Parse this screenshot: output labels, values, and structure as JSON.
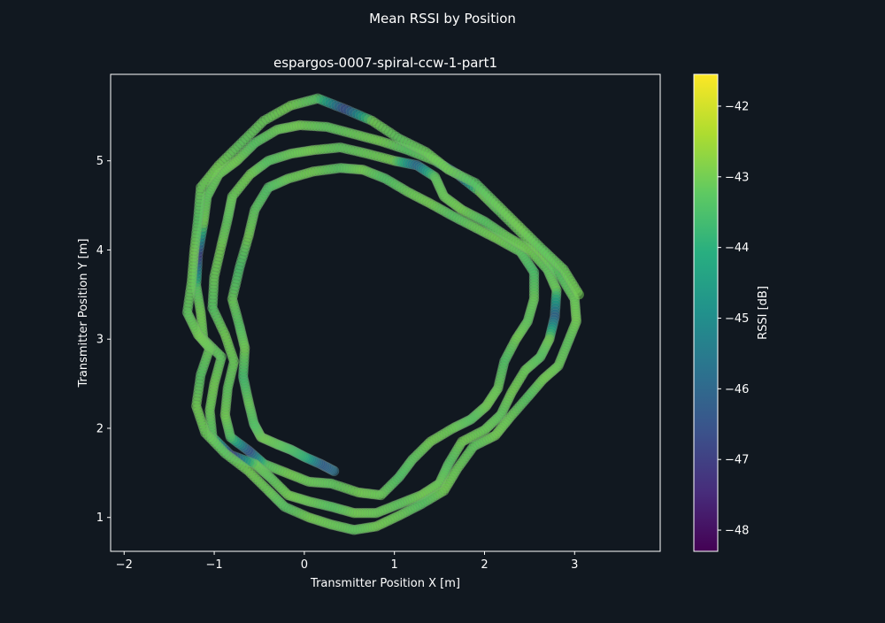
{
  "figure": {
    "suptitle": "Mean RSSI by Position",
    "background": "#111820"
  },
  "chart_data": {
    "type": "scatter",
    "title": "espargos-0007-spiral-ccw-1-part1",
    "xlabel": "Transmitter Position X [m]",
    "ylabel": "Transmitter Position Y [m]",
    "xlim": [
      -2.15,
      3.95
    ],
    "ylim": [
      0.62,
      5.97
    ],
    "xticks": [
      -2,
      -1,
      0,
      1,
      2,
      3
    ],
    "yticks": [
      1,
      2,
      3,
      4,
      5
    ],
    "xtick_labels": [
      "−2",
      "−1",
      "0",
      "1",
      "2",
      "3"
    ],
    "ytick_labels": [
      "1",
      "2",
      "3",
      "4",
      "5"
    ],
    "grid": false,
    "colormap": "viridis",
    "colorbar": {
      "label": "RSSI [dB]",
      "min": -48.3,
      "max": -41.55,
      "ticks": [
        -48,
        -47,
        -46,
        -45,
        -44,
        -43,
        -42
      ],
      "tick_labels": [
        "−48",
        "−47",
        "−46",
        "−45",
        "−44",
        "−43",
        "−42"
      ]
    },
    "series": [
      {
        "description_hidden": false,
        "points": [
          [
            0.33,
            1.52,
            -45.8
          ],
          [
            0.18,
            1.6,
            -46.3
          ],
          [
            0.0,
            1.68,
            -44.0
          ],
          [
            -0.15,
            1.76,
            -43.5
          ],
          [
            -0.3,
            1.82,
            -43.2
          ],
          [
            -0.48,
            1.9,
            -43.0
          ],
          [
            -0.56,
            2.05,
            -43.4
          ],
          [
            -0.62,
            2.3,
            -43.1
          ],
          [
            -0.68,
            2.58,
            -43.6
          ],
          [
            -0.66,
            2.9,
            -43.0
          ],
          [
            -0.72,
            3.15,
            -43.3
          ],
          [
            -0.8,
            3.45,
            -43.1
          ],
          [
            -0.72,
            3.8,
            -43.5
          ],
          [
            -0.62,
            4.15,
            -43.0
          ],
          [
            -0.55,
            4.45,
            -43.2
          ],
          [
            -0.4,
            4.7,
            -43.4
          ],
          [
            -0.18,
            4.8,
            -43.1
          ],
          [
            0.1,
            4.88,
            -43.0
          ],
          [
            0.4,
            4.92,
            -43.3
          ],
          [
            0.65,
            4.9,
            -43.0
          ],
          [
            0.9,
            4.8,
            -43.4
          ],
          [
            1.15,
            4.65,
            -43.1
          ],
          [
            1.4,
            4.52,
            -43.0
          ],
          [
            1.65,
            4.38,
            -43.3
          ],
          [
            1.9,
            4.25,
            -43.1
          ],
          [
            2.15,
            4.12,
            -43.0
          ],
          [
            2.4,
            3.98,
            -43.2
          ],
          [
            2.55,
            3.75,
            -43.5
          ],
          [
            2.55,
            3.45,
            -43.1
          ],
          [
            2.48,
            3.2,
            -43.2
          ],
          [
            2.35,
            3.0,
            -43.0
          ],
          [
            2.22,
            2.75,
            -43.4
          ],
          [
            2.15,
            2.45,
            -43.1
          ],
          [
            2.02,
            2.25,
            -43.0
          ],
          [
            1.85,
            2.1,
            -43.3
          ],
          [
            1.65,
            2.0,
            -43.1
          ],
          [
            1.4,
            1.85,
            -43.0
          ],
          [
            1.2,
            1.65,
            -43.2
          ],
          [
            1.05,
            1.45,
            -43.4
          ],
          [
            0.85,
            1.25,
            -43.1
          ],
          [
            0.6,
            1.28,
            -43.0
          ],
          [
            0.3,
            1.38,
            -43.2
          ],
          [
            0.05,
            1.4,
            -43.1
          ],
          [
            -0.2,
            1.5,
            -43.0
          ],
          [
            -0.45,
            1.6,
            -43.3
          ],
          [
            -0.62,
            1.75,
            -46.6
          ],
          [
            -0.82,
            1.9,
            -43.4
          ],
          [
            -0.88,
            2.15,
            -43.0
          ],
          [
            -0.85,
            2.45,
            -43.2
          ],
          [
            -0.78,
            2.75,
            -43.1
          ],
          [
            -0.88,
            3.05,
            -43.0
          ],
          [
            -1.02,
            3.35,
            -43.3
          ],
          [
            -1.0,
            3.7,
            -43.1
          ],
          [
            -0.92,
            4.05,
            -43.0
          ],
          [
            -0.85,
            4.35,
            -43.2
          ],
          [
            -0.8,
            4.6,
            -43.1
          ],
          [
            -0.6,
            4.85,
            -43.0
          ],
          [
            -0.4,
            5.0,
            -43.3
          ],
          [
            -0.15,
            5.08,
            -43.1
          ],
          [
            0.1,
            5.12,
            -43.0
          ],
          [
            0.4,
            5.15,
            -43.2
          ],
          [
            0.7,
            5.08,
            -43.1
          ],
          [
            1.0,
            5.0,
            -43.0
          ],
          [
            1.25,
            4.95,
            -46.0
          ],
          [
            1.45,
            4.82,
            -43.2
          ],
          [
            1.55,
            4.6,
            -43.1
          ],
          [
            1.75,
            4.45,
            -43.0
          ],
          [
            2.0,
            4.32,
            -43.3
          ],
          [
            2.25,
            4.15,
            -43.1
          ],
          [
            2.5,
            4.0,
            -43.0
          ],
          [
            2.7,
            3.78,
            -43.2
          ],
          [
            2.8,
            3.55,
            -43.1
          ],
          [
            2.78,
            3.25,
            -46.2
          ],
          [
            2.72,
            3.0,
            -43.0
          ],
          [
            2.62,
            2.8,
            -43.3
          ],
          [
            2.45,
            2.65,
            -43.1
          ],
          [
            2.3,
            2.4,
            -43.0
          ],
          [
            2.18,
            2.15,
            -43.2
          ],
          [
            2.0,
            1.98,
            -43.1
          ],
          [
            1.75,
            1.85,
            -43.0
          ],
          [
            1.6,
            1.6,
            -43.3
          ],
          [
            1.5,
            1.38,
            -43.1
          ],
          [
            1.3,
            1.25,
            -43.0
          ],
          [
            1.05,
            1.15,
            -43.2
          ],
          [
            0.8,
            1.05,
            -43.1
          ],
          [
            0.55,
            1.05,
            -43.0
          ],
          [
            0.3,
            1.12,
            -43.3
          ],
          [
            0.05,
            1.18,
            -43.1
          ],
          [
            -0.18,
            1.25,
            -43.0
          ],
          [
            -0.38,
            1.45,
            -43.2
          ],
          [
            -0.55,
            1.6,
            -43.1
          ],
          [
            -0.82,
            1.7,
            -47.0
          ],
          [
            -1.02,
            1.9,
            -43.3
          ],
          [
            -1.05,
            2.2,
            -43.1
          ],
          [
            -1.0,
            2.5,
            -43.0
          ],
          [
            -0.92,
            2.8,
            -43.2
          ],
          [
            -1.12,
            3.0,
            -43.1
          ],
          [
            -1.15,
            3.3,
            -43.0
          ],
          [
            -1.2,
            3.6,
            -43.3
          ],
          [
            -1.18,
            3.95,
            -47.1
          ],
          [
            -1.12,
            4.3,
            -43.0
          ],
          [
            -1.08,
            4.6,
            -43.2
          ],
          [
            -0.95,
            4.85,
            -43.1
          ],
          [
            -0.75,
            5.0,
            -43.0
          ],
          [
            -0.55,
            5.2,
            -43.3
          ],
          [
            -0.3,
            5.35,
            -43.1
          ],
          [
            -0.05,
            5.4,
            -43.0
          ],
          [
            0.25,
            5.38,
            -43.2
          ],
          [
            0.55,
            5.3,
            -43.1
          ],
          [
            0.85,
            5.22,
            -43.0
          ],
          [
            1.15,
            5.12,
            -43.3
          ],
          [
            1.45,
            5.0,
            -43.1
          ],
          [
            1.7,
            4.85,
            -46.4
          ],
          [
            1.95,
            4.65,
            -43.0
          ],
          [
            2.15,
            4.45,
            -43.2
          ],
          [
            2.4,
            4.2,
            -43.1
          ],
          [
            2.65,
            3.95,
            -43.0
          ],
          [
            2.85,
            3.7,
            -43.3
          ],
          [
            3.0,
            3.45,
            -43.1
          ],
          [
            3.02,
            3.2,
            -43.0
          ],
          [
            2.92,
            2.95,
            -43.2
          ],
          [
            2.82,
            2.7,
            -43.1
          ],
          [
            2.65,
            2.55,
            -43.0
          ],
          [
            2.48,
            2.35,
            -43.3
          ],
          [
            2.28,
            2.12,
            -43.1
          ],
          [
            2.12,
            1.92,
            -43.0
          ],
          [
            1.88,
            1.8,
            -43.2
          ],
          [
            1.7,
            1.55,
            -43.1
          ],
          [
            1.55,
            1.3,
            -43.0
          ],
          [
            1.3,
            1.15,
            -43.3
          ],
          [
            1.05,
            1.02,
            -43.1
          ],
          [
            0.8,
            0.9,
            -43.0
          ],
          [
            0.55,
            0.86,
            -43.2
          ],
          [
            0.3,
            0.92,
            -43.1
          ],
          [
            0.05,
            1.0,
            -43.0
          ],
          [
            -0.22,
            1.12,
            -43.3
          ],
          [
            -0.4,
            1.3,
            -43.1
          ],
          [
            -0.62,
            1.52,
            -43.0
          ],
          [
            -0.88,
            1.72,
            -43.2
          ],
          [
            -1.1,
            1.95,
            -43.1
          ],
          [
            -1.2,
            2.25,
            -43.0
          ],
          [
            -1.15,
            2.6,
            -43.3
          ],
          [
            -1.05,
            2.9,
            -43.1
          ],
          [
            -1.18,
            3.05,
            -43.0
          ],
          [
            -1.3,
            3.3,
            -43.2
          ],
          [
            -1.25,
            3.65,
            -43.1
          ],
          [
            -1.22,
            4.0,
            -43.0
          ],
          [
            -1.18,
            4.35,
            -43.3
          ],
          [
            -1.15,
            4.7,
            -43.1
          ],
          [
            -0.95,
            4.95,
            -43.0
          ],
          [
            -0.7,
            5.2,
            -43.2
          ],
          [
            -0.45,
            5.45,
            -43.1
          ],
          [
            -0.15,
            5.62,
            -43.0
          ],
          [
            0.15,
            5.7,
            -43.3
          ],
          [
            0.45,
            5.58,
            -46.8
          ],
          [
            0.75,
            5.45,
            -43.0
          ],
          [
            1.05,
            5.25,
            -43.2
          ],
          [
            1.35,
            5.1,
            -43.1
          ],
          [
            1.6,
            4.9,
            -43.0
          ],
          [
            1.9,
            4.75,
            -43.3
          ],
          [
            2.15,
            4.5,
            -43.1
          ],
          [
            2.4,
            4.25,
            -43.0
          ],
          [
            2.65,
            4.0,
            -43.2
          ],
          [
            2.88,
            3.78,
            -43.1
          ],
          [
            3.05,
            3.5,
            -43.0
          ]
        ]
      }
    ]
  }
}
